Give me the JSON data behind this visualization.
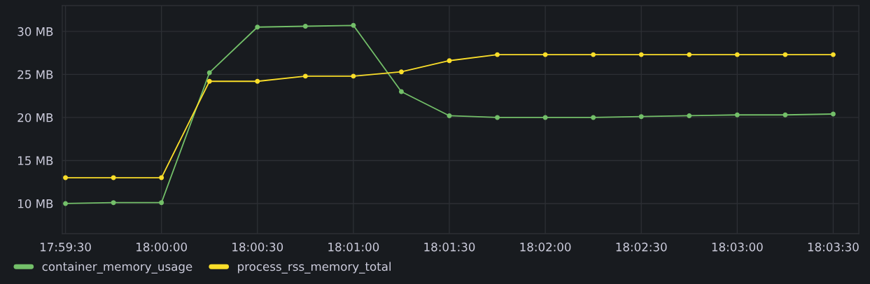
{
  "chart_data": {
    "type": "line",
    "x": [
      17.991667,
      17.995833,
      18.0,
      18.004167,
      18.008333,
      18.0125,
      18.016667,
      18.020833,
      18.025,
      18.029167,
      18.033333,
      18.0375,
      18.041667,
      18.045833,
      18.05,
      18.054167,
      18.058333
    ],
    "series": [
      {
        "name": "container_memory_usage",
        "color": "#73bf69",
        "values": [
          10.0,
          10.1,
          10.1,
          25.2,
          30.5,
          30.6,
          30.7,
          23.0,
          20.2,
          20.0,
          20.0,
          20.0,
          20.1,
          20.2,
          20.3,
          20.3,
          20.4
        ]
      },
      {
        "name": "process_rss_memory_total",
        "color": "#fade2a",
        "values": [
          13.0,
          13.0,
          13.0,
          24.2,
          24.2,
          24.8,
          24.8,
          25.3,
          26.6,
          27.3,
          27.3,
          27.3,
          27.3,
          27.3,
          27.3,
          27.3,
          27.3
        ]
      }
    ],
    "xlim": [
      17.991389,
      18.060556
    ],
    "xticks": [
      {
        "value": 17.991667,
        "label": "17:59:30"
      },
      {
        "value": 18.0,
        "label": "18:00:00"
      },
      {
        "value": 18.008333,
        "label": "18:00:30"
      },
      {
        "value": 18.016667,
        "label": "18:01:00"
      },
      {
        "value": 18.025,
        "label": "18:01:30"
      },
      {
        "value": 18.033333,
        "label": "18:02:00"
      },
      {
        "value": 18.041667,
        "label": "18:02:30"
      },
      {
        "value": 18.05,
        "label": "18:03:00"
      },
      {
        "value": 18.058333,
        "label": "18:03:30"
      }
    ],
    "ylim": [
      6.5,
      33
    ],
    "yticks": [
      {
        "value": 10,
        "label": "10 MB"
      },
      {
        "value": 15,
        "label": "15 MB"
      },
      {
        "value": 20,
        "label": "20 MB"
      },
      {
        "value": 25,
        "label": "25 MB"
      },
      {
        "value": 30,
        "label": "30 MB"
      }
    ],
    "grid": true,
    "legend": "bottom left",
    "marker": "circle",
    "line_style": "solid"
  }
}
